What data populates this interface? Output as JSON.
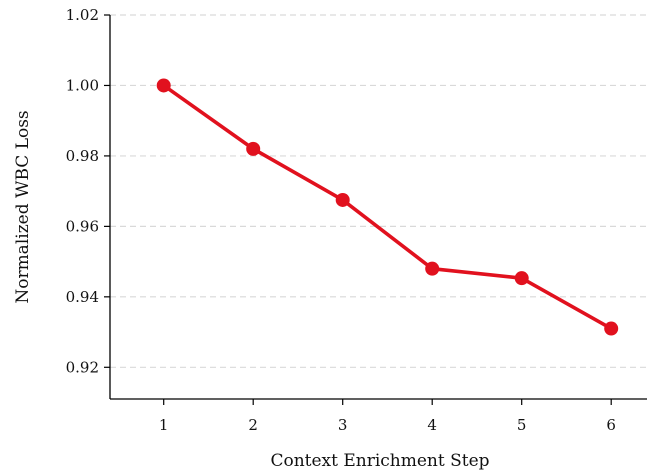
{
  "chart_data": {
    "type": "line",
    "title": "",
    "xlabel": "Context Enrichment Step",
    "ylabel": "Normalized WBC Loss",
    "x": [
      1,
      2,
      3,
      4,
      5,
      6
    ],
    "series": [
      {
        "values": [
          1.0,
          0.982,
          0.9675,
          0.948,
          0.9453,
          0.931
        ]
      }
    ],
    "xlim": [
      0.4,
      6.4
    ],
    "ylim": [
      0.911,
      1.02
    ],
    "xticks": [
      "1",
      "2",
      "3",
      "4",
      "5",
      "6"
    ],
    "yticks": [
      "0.92",
      "0.94",
      "0.96",
      "0.98",
      "1.00",
      "1.02"
    ],
    "grid": "horizontal dashed",
    "line_color": "#e1111e",
    "grid_color": "#d9d9d9"
  }
}
